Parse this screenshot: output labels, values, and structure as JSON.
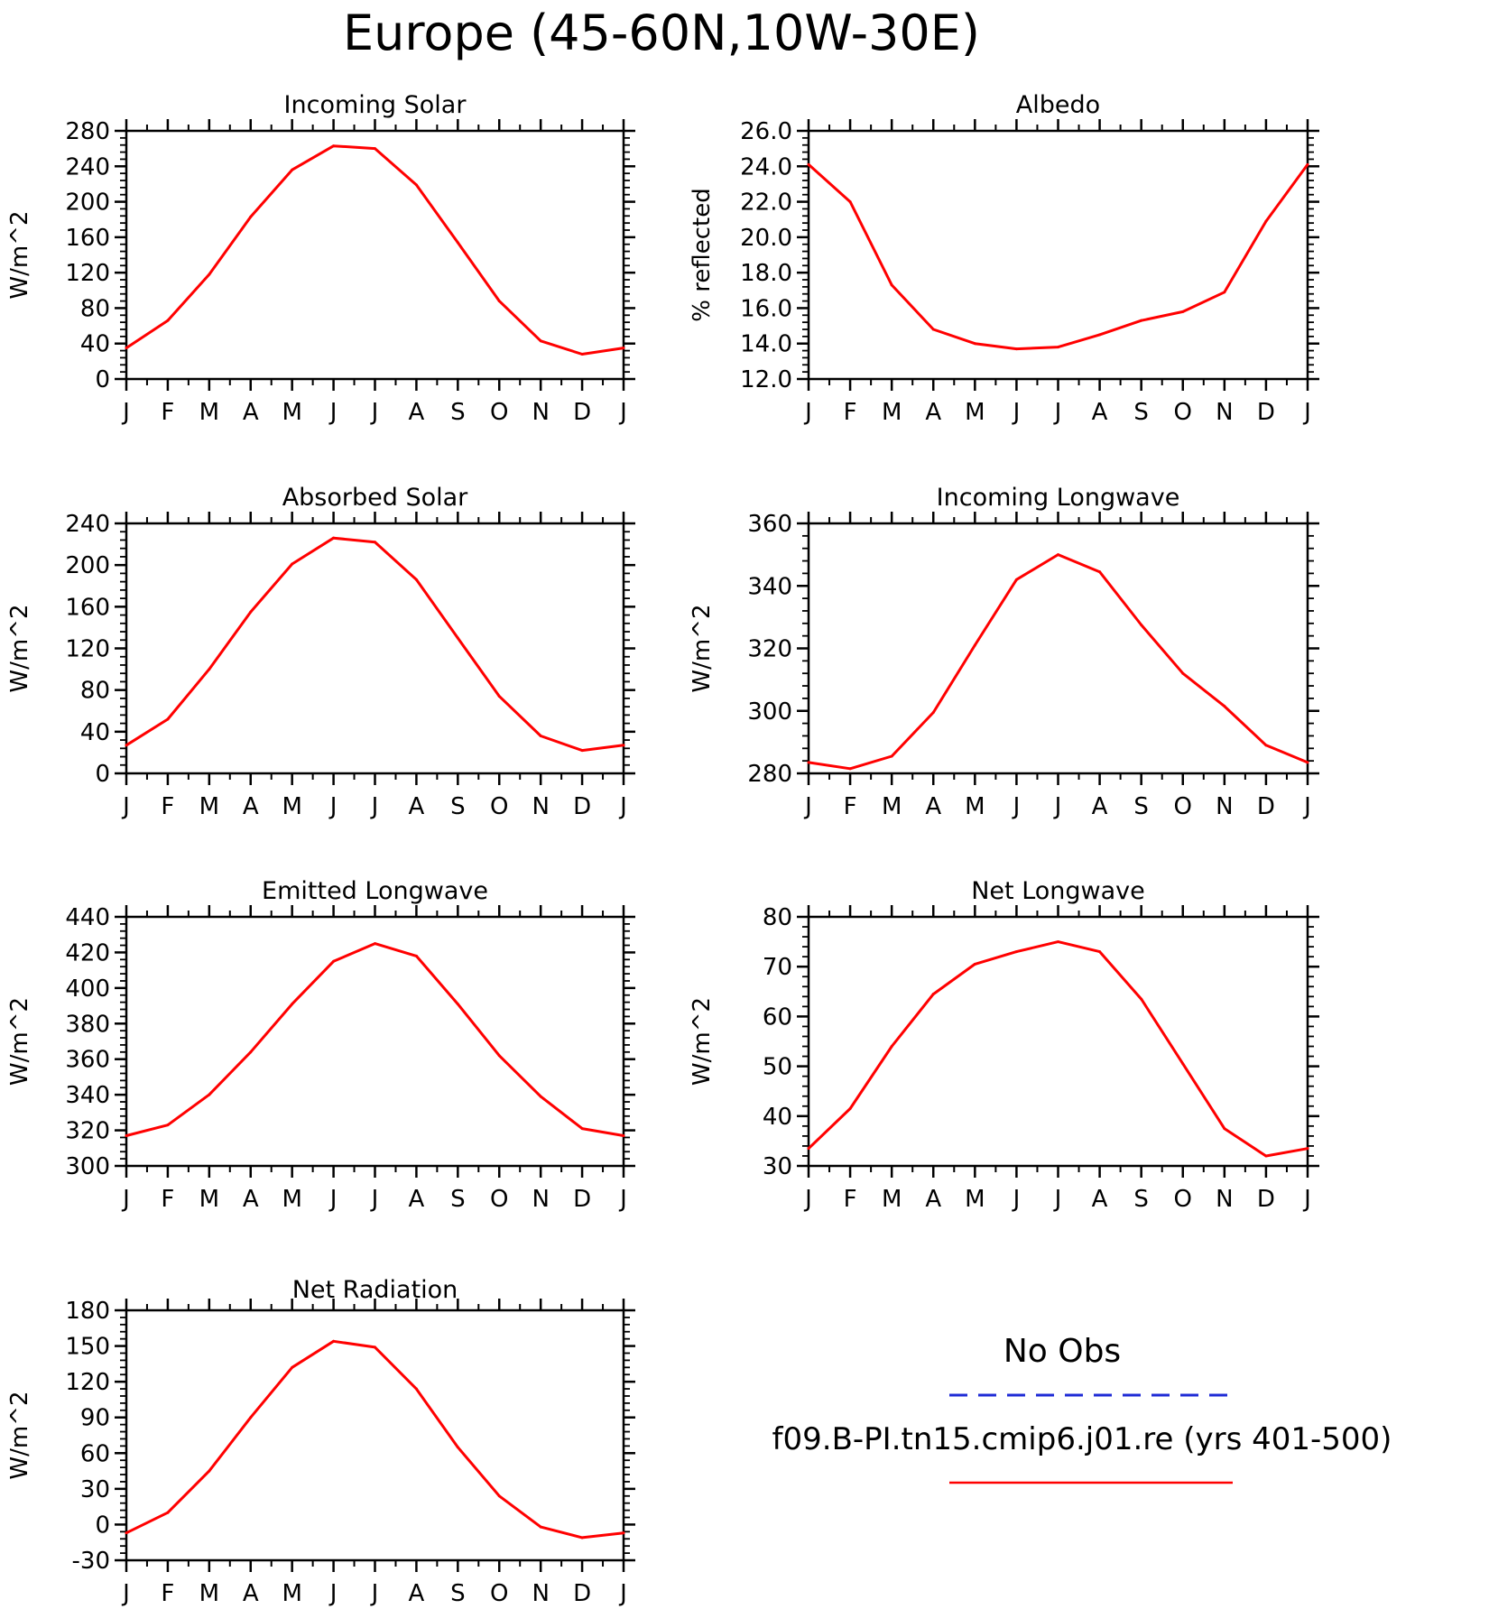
{
  "title": "Europe (45-60N,10W-30E)",
  "months": [
    "J",
    "F",
    "M",
    "A",
    "M",
    "J",
    "J",
    "A",
    "S",
    "O",
    "N",
    "D",
    "J"
  ],
  "chart_data": [
    {
      "type": "line",
      "title": "Incoming Solar",
      "ylabel": "W/m^2",
      "ylim": [
        0,
        280
      ],
      "yticks": [
        "0",
        "40",
        "80",
        "120",
        "160",
        "200",
        "240",
        "280"
      ],
      "series": [
        {
          "values": [
            35,
            66,
            118,
            183,
            236,
            263,
            260,
            219,
            154,
            88,
            43,
            28,
            35
          ]
        }
      ]
    },
    {
      "type": "line",
      "title": "Albedo",
      "ylabel": "% reflected",
      "ylim": [
        12,
        26
      ],
      "yticks": [
        "12.0",
        "14.0",
        "16.0",
        "18.0",
        "20.0",
        "22.0",
        "24.0",
        "26.0"
      ],
      "series": [
        {
          "values": [
            24.1,
            22.0,
            17.3,
            14.8,
            14.0,
            13.7,
            13.8,
            14.5,
            15.3,
            15.8,
            16.9,
            20.9,
            24.1
          ]
        }
      ]
    },
    {
      "type": "line",
      "title": "Absorbed Solar",
      "ylabel": "W/m^2",
      "ylim": [
        0,
        240
      ],
      "yticks": [
        "0",
        "40",
        "80",
        "120",
        "160",
        "200",
        "240"
      ],
      "series": [
        {
          "values": [
            27,
            52,
            100,
            155,
            201,
            226,
            222,
            186,
            130,
            74,
            36,
            22,
            27
          ]
        }
      ]
    },
    {
      "type": "line",
      "title": "Incoming Longwave",
      "ylabel": "W/m^2",
      "ylim": [
        280,
        360
      ],
      "yticks": [
        "280",
        "300",
        "320",
        "340",
        "360"
      ],
      "series": [
        {
          "values": [
            283.5,
            281.5,
            285.5,
            299.5,
            321,
            342,
            350,
            344.5,
            327.5,
            312,
            301.5,
            289,
            283.5
          ]
        }
      ]
    },
    {
      "type": "line",
      "title": "Emitted Longwave",
      "ylabel": "W/m^2",
      "ylim": [
        300,
        440
      ],
      "yticks": [
        "300",
        "320",
        "340",
        "360",
        "380",
        "400",
        "420",
        "440"
      ],
      "series": [
        {
          "values": [
            317,
            323,
            340,
            364,
            391,
            415,
            425,
            418,
            391,
            362,
            339,
            321,
            317
          ]
        }
      ]
    },
    {
      "type": "line",
      "title": "Net Longwave",
      "ylabel": "W/m^2",
      "ylim": [
        30,
        80
      ],
      "yticks": [
        "30",
        "40",
        "50",
        "60",
        "70",
        "80"
      ],
      "series": [
        {
          "values": [
            33.5,
            41.5,
            54,
            64.5,
            70.5,
            73,
            75,
            73,
            63.5,
            50.5,
            37.5,
            32,
            33.5
          ]
        }
      ]
    },
    {
      "type": "line",
      "title": "Net Radiation",
      "ylabel": "W/m^2",
      "ylim": [
        -30,
        180
      ],
      "yticks": [
        "-30",
        "0",
        "30",
        "60",
        "90",
        "120",
        "150",
        "180"
      ],
      "series": [
        {
          "values": [
            -7,
            10,
            45,
            90,
            132,
            154,
            149,
            114,
            65,
            24,
            -2,
            -11,
            -7
          ]
        }
      ]
    }
  ],
  "legend": {
    "obs_label": "No Obs",
    "model_label": "f09.B-PI.tn15.cmip6.j01.re (yrs 401-500)",
    "obs_color": "#1f2bd6",
    "model_color": "#ff0000"
  }
}
